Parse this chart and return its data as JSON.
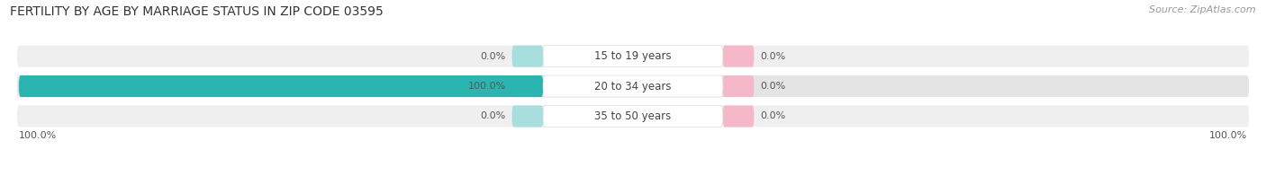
{
  "title": "FERTILITY BY AGE BY MARRIAGE STATUS IN ZIP CODE 03595",
  "source": "Source: ZipAtlas.com",
  "rows": [
    {
      "label": "15 to 19 years",
      "married": 0.0,
      "unmarried": 0.0
    },
    {
      "label": "20 to 34 years",
      "married": 100.0,
      "unmarried": 0.0
    },
    {
      "label": "35 to 50 years",
      "married": 0.0,
      "unmarried": 0.0
    }
  ],
  "married_color": "#2ab5b0",
  "married_color_light": "#a8dedd",
  "unmarried_color": "#f08098",
  "unmarried_color_light": "#f5b8c8",
  "row_bg_colors": [
    "#efefef",
    "#e4e4e4",
    "#efefef"
  ],
  "axis_left_label": "100.0%",
  "axis_right_label": "100.0%",
  "title_fontsize": 10,
  "source_fontsize": 8,
  "bar_max": 100.0,
  "min_bar_stub": 5.0
}
